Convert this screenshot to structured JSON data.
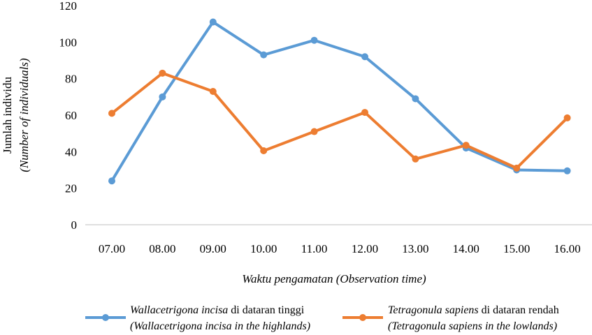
{
  "chart_data": {
    "type": "line",
    "categories": [
      "07.00",
      "08.00",
      "09.00",
      "10.00",
      "11.00",
      "12.00",
      "13.00",
      "14.00",
      "15.00",
      "16.00"
    ],
    "series": [
      {
        "name_italic": "Wallacetrigona incisa",
        "name_rest": " di dataran tinggi",
        "name_en": "(Wallacetrigona incisa in the highlands)",
        "color": "#5B9BD5",
        "values": [
          24,
          70,
          111,
          93,
          101,
          92,
          69,
          42,
          30,
          29.5
        ]
      },
      {
        "name_italic": "Tetragonula sapiens",
        "name_rest": " di dataran rendah",
        "name_en": "(Tetragonula sapiens in the lowlands)",
        "color": "#ED7D31",
        "values": [
          61,
          83,
          73,
          40.5,
          51,
          61.5,
          36,
          43.5,
          31,
          58.5
        ]
      }
    ],
    "ylabel": "Jumlah individu",
    "ylabel_en": "(Number of individuals)",
    "xlabel": "Waktu pengamatan (Observation time)",
    "ylim": [
      0,
      120
    ],
    "yticks": [
      0,
      20,
      40,
      60,
      80,
      100,
      120
    ],
    "grid": false,
    "legend": "bottom"
  }
}
